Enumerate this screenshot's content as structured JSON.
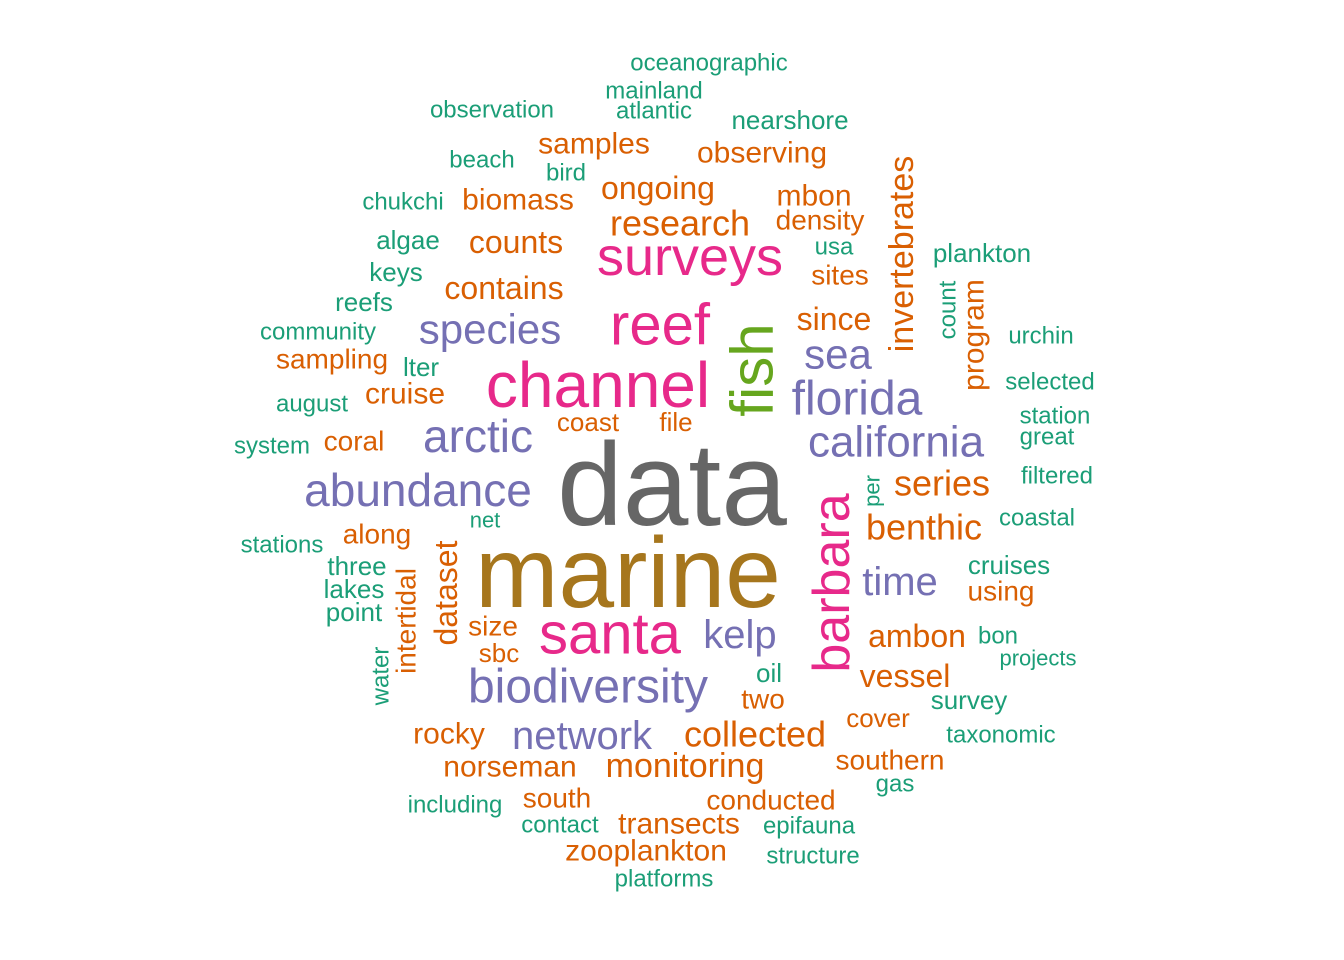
{
  "palette": {
    "gray": "#666666",
    "brown": "#A6761D",
    "pink": "#E7298A",
    "purple": "#7570B3",
    "green": "#66A61E",
    "orange": "#D95F02",
    "teal": "#1B9E77"
  },
  "words": [
    {
      "text": "data",
      "color": "gray"
    },
    {
      "text": "marine",
      "color": "brown"
    },
    {
      "text": "channel",
      "color": "pink"
    },
    {
      "text": "reef",
      "color": "pink"
    },
    {
      "text": "santa",
      "color": "pink"
    },
    {
      "text": "surveys",
      "color": "pink"
    },
    {
      "text": "barbara",
      "color": "pink",
      "vertical": true
    },
    {
      "text": "fish",
      "color": "green",
      "vertical": true
    },
    {
      "text": "florida",
      "color": "purple"
    },
    {
      "text": "california",
      "color": "purple"
    },
    {
      "text": "biodiversity",
      "color": "purple"
    },
    {
      "text": "abundance",
      "color": "purple"
    },
    {
      "text": "arctic",
      "color": "purple"
    },
    {
      "text": "species",
      "color": "purple"
    },
    {
      "text": "sea",
      "color": "purple"
    },
    {
      "text": "time",
      "color": "purple"
    },
    {
      "text": "kelp",
      "color": "purple"
    },
    {
      "text": "network",
      "color": "purple"
    },
    {
      "text": "research",
      "color": "orange"
    },
    {
      "text": "ongoing",
      "color": "orange"
    },
    {
      "text": "samples",
      "color": "orange"
    },
    {
      "text": "observing",
      "color": "orange"
    },
    {
      "text": "biomass",
      "color": "orange"
    },
    {
      "text": "mbon",
      "color": "orange"
    },
    {
      "text": "density",
      "color": "orange"
    },
    {
      "text": "counts",
      "color": "orange"
    },
    {
      "text": "contains",
      "color": "orange"
    },
    {
      "text": "sites",
      "color": "orange"
    },
    {
      "text": "since",
      "color": "orange"
    },
    {
      "text": "invertebrates",
      "color": "orange",
      "vertical": true
    },
    {
      "text": "program",
      "color": "orange",
      "vertical": true
    },
    {
      "text": "sampling",
      "color": "orange"
    },
    {
      "text": "cruise",
      "color": "orange"
    },
    {
      "text": "coral",
      "color": "orange"
    },
    {
      "text": "coast",
      "color": "orange"
    },
    {
      "text": "file",
      "color": "orange"
    },
    {
      "text": "series",
      "color": "orange"
    },
    {
      "text": "benthic",
      "color": "orange"
    },
    {
      "text": "along",
      "color": "orange"
    },
    {
      "text": "dataset",
      "color": "orange",
      "vertical": true
    },
    {
      "text": "intertidal",
      "color": "orange",
      "vertical": true
    },
    {
      "text": "size",
      "color": "orange"
    },
    {
      "text": "sbc",
      "color": "orange"
    },
    {
      "text": "using",
      "color": "orange"
    },
    {
      "text": "ambon",
      "color": "orange"
    },
    {
      "text": "vessel",
      "color": "orange"
    },
    {
      "text": "two",
      "color": "orange"
    },
    {
      "text": "collected",
      "color": "orange"
    },
    {
      "text": "cover",
      "color": "orange"
    },
    {
      "text": "rocky",
      "color": "orange"
    },
    {
      "text": "monitoring",
      "color": "orange"
    },
    {
      "text": "norseman",
      "color": "orange"
    },
    {
      "text": "southern",
      "color": "orange"
    },
    {
      "text": "south",
      "color": "orange"
    },
    {
      "text": "conducted",
      "color": "orange"
    },
    {
      "text": "transects",
      "color": "orange"
    },
    {
      "text": "zooplankton",
      "color": "orange"
    },
    {
      "text": "oceanographic",
      "color": "teal"
    },
    {
      "text": "mainland",
      "color": "teal"
    },
    {
      "text": "atlantic",
      "color": "teal"
    },
    {
      "text": "observation",
      "color": "teal"
    },
    {
      "text": "nearshore",
      "color": "teal"
    },
    {
      "text": "beach",
      "color": "teal"
    },
    {
      "text": "bird",
      "color": "teal"
    },
    {
      "text": "chukchi",
      "color": "teal"
    },
    {
      "text": "algae",
      "color": "teal"
    },
    {
      "text": "usa",
      "color": "teal"
    },
    {
      "text": "plankton",
      "color": "teal"
    },
    {
      "text": "keys",
      "color": "teal"
    },
    {
      "text": "reefs",
      "color": "teal"
    },
    {
      "text": "count",
      "color": "teal",
      "vertical": true
    },
    {
      "text": "community",
      "color": "teal"
    },
    {
      "text": "urchin",
      "color": "teal"
    },
    {
      "text": "lter",
      "color": "teal"
    },
    {
      "text": "selected",
      "color": "teal"
    },
    {
      "text": "august",
      "color": "teal"
    },
    {
      "text": "station",
      "color": "teal"
    },
    {
      "text": "system",
      "color": "teal"
    },
    {
      "text": "great",
      "color": "teal"
    },
    {
      "text": "per",
      "color": "teal",
      "vertical": true
    },
    {
      "text": "filtered",
      "color": "teal"
    },
    {
      "text": "net",
      "color": "teal"
    },
    {
      "text": "coastal",
      "color": "teal"
    },
    {
      "text": "stations",
      "color": "teal"
    },
    {
      "text": "three",
      "color": "teal"
    },
    {
      "text": "cruises",
      "color": "teal"
    },
    {
      "text": "lakes",
      "color": "teal"
    },
    {
      "text": "point",
      "color": "teal"
    },
    {
      "text": "bon",
      "color": "teal"
    },
    {
      "text": "water",
      "color": "teal",
      "vertical": true
    },
    {
      "text": "projects",
      "color": "teal"
    },
    {
      "text": "oil",
      "color": "teal"
    },
    {
      "text": "survey",
      "color": "teal"
    },
    {
      "text": "taxonomic",
      "color": "teal"
    },
    {
      "text": "gas",
      "color": "teal"
    },
    {
      "text": "including",
      "color": "teal"
    },
    {
      "text": "contact",
      "color": "teal"
    },
    {
      "text": "epifauna",
      "color": "teal"
    },
    {
      "text": "structure",
      "color": "teal"
    },
    {
      "text": "platforms",
      "color": "teal"
    }
  ]
}
